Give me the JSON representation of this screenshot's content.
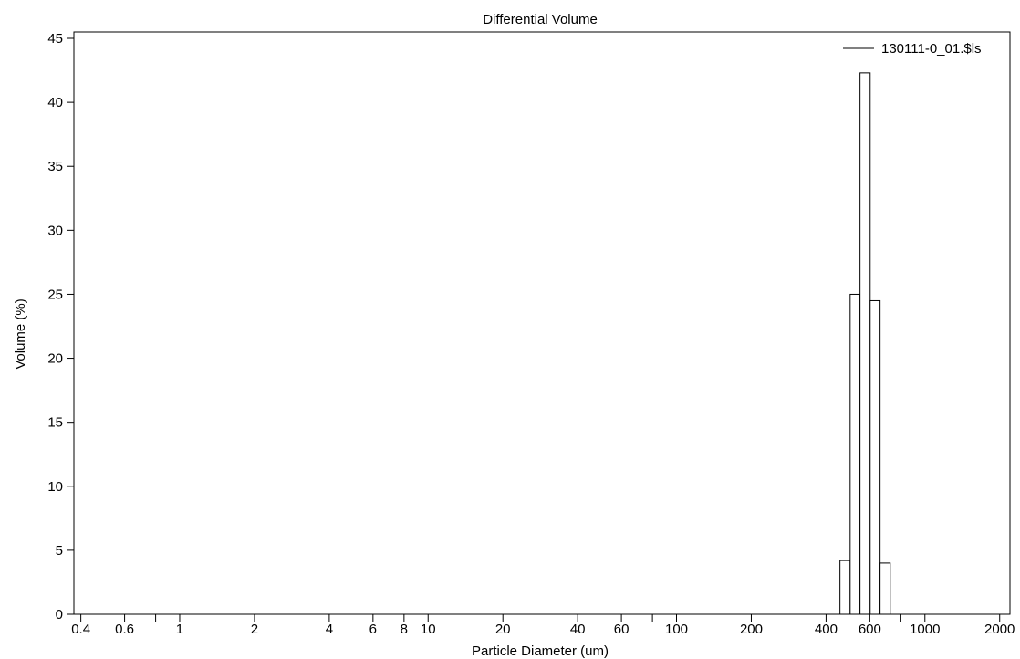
{
  "chart_data": {
    "type": "bar",
    "title": "Differential Volume",
    "xlabel": "Particle Diameter (um)",
    "ylabel": "Volume (%)",
    "x_scale": "log",
    "xlim": [
      0.375,
      2200
    ],
    "ylim": [
      0,
      45.5
    ],
    "y_ticks": [
      0,
      5,
      10,
      15,
      20,
      25,
      30,
      35,
      40,
      45
    ],
    "x_tick_labels": [
      "0.4",
      "0.6",
      "1",
      "2",
      "4",
      "6",
      "8",
      "10",
      "20",
      "40",
      "60",
      "100",
      "200",
      "400",
      "600",
      "1000",
      "2000"
    ],
    "x_minor_ticks": [
      0.8,
      80,
      800
    ],
    "grid": false,
    "legend_position": "top-right",
    "series": [
      {
        "name": "130111-0_01.$ls",
        "bins": [
          {
            "x_from": 455,
            "x_to": 500,
            "value": 4.2
          },
          {
            "x_from": 500,
            "x_to": 548,
            "value": 25.0
          },
          {
            "x_from": 548,
            "x_to": 602,
            "value": 42.3
          },
          {
            "x_from": 602,
            "x_to": 660,
            "value": 24.5
          },
          {
            "x_from": 660,
            "x_to": 725,
            "value": 4.0
          }
        ]
      }
    ]
  }
}
